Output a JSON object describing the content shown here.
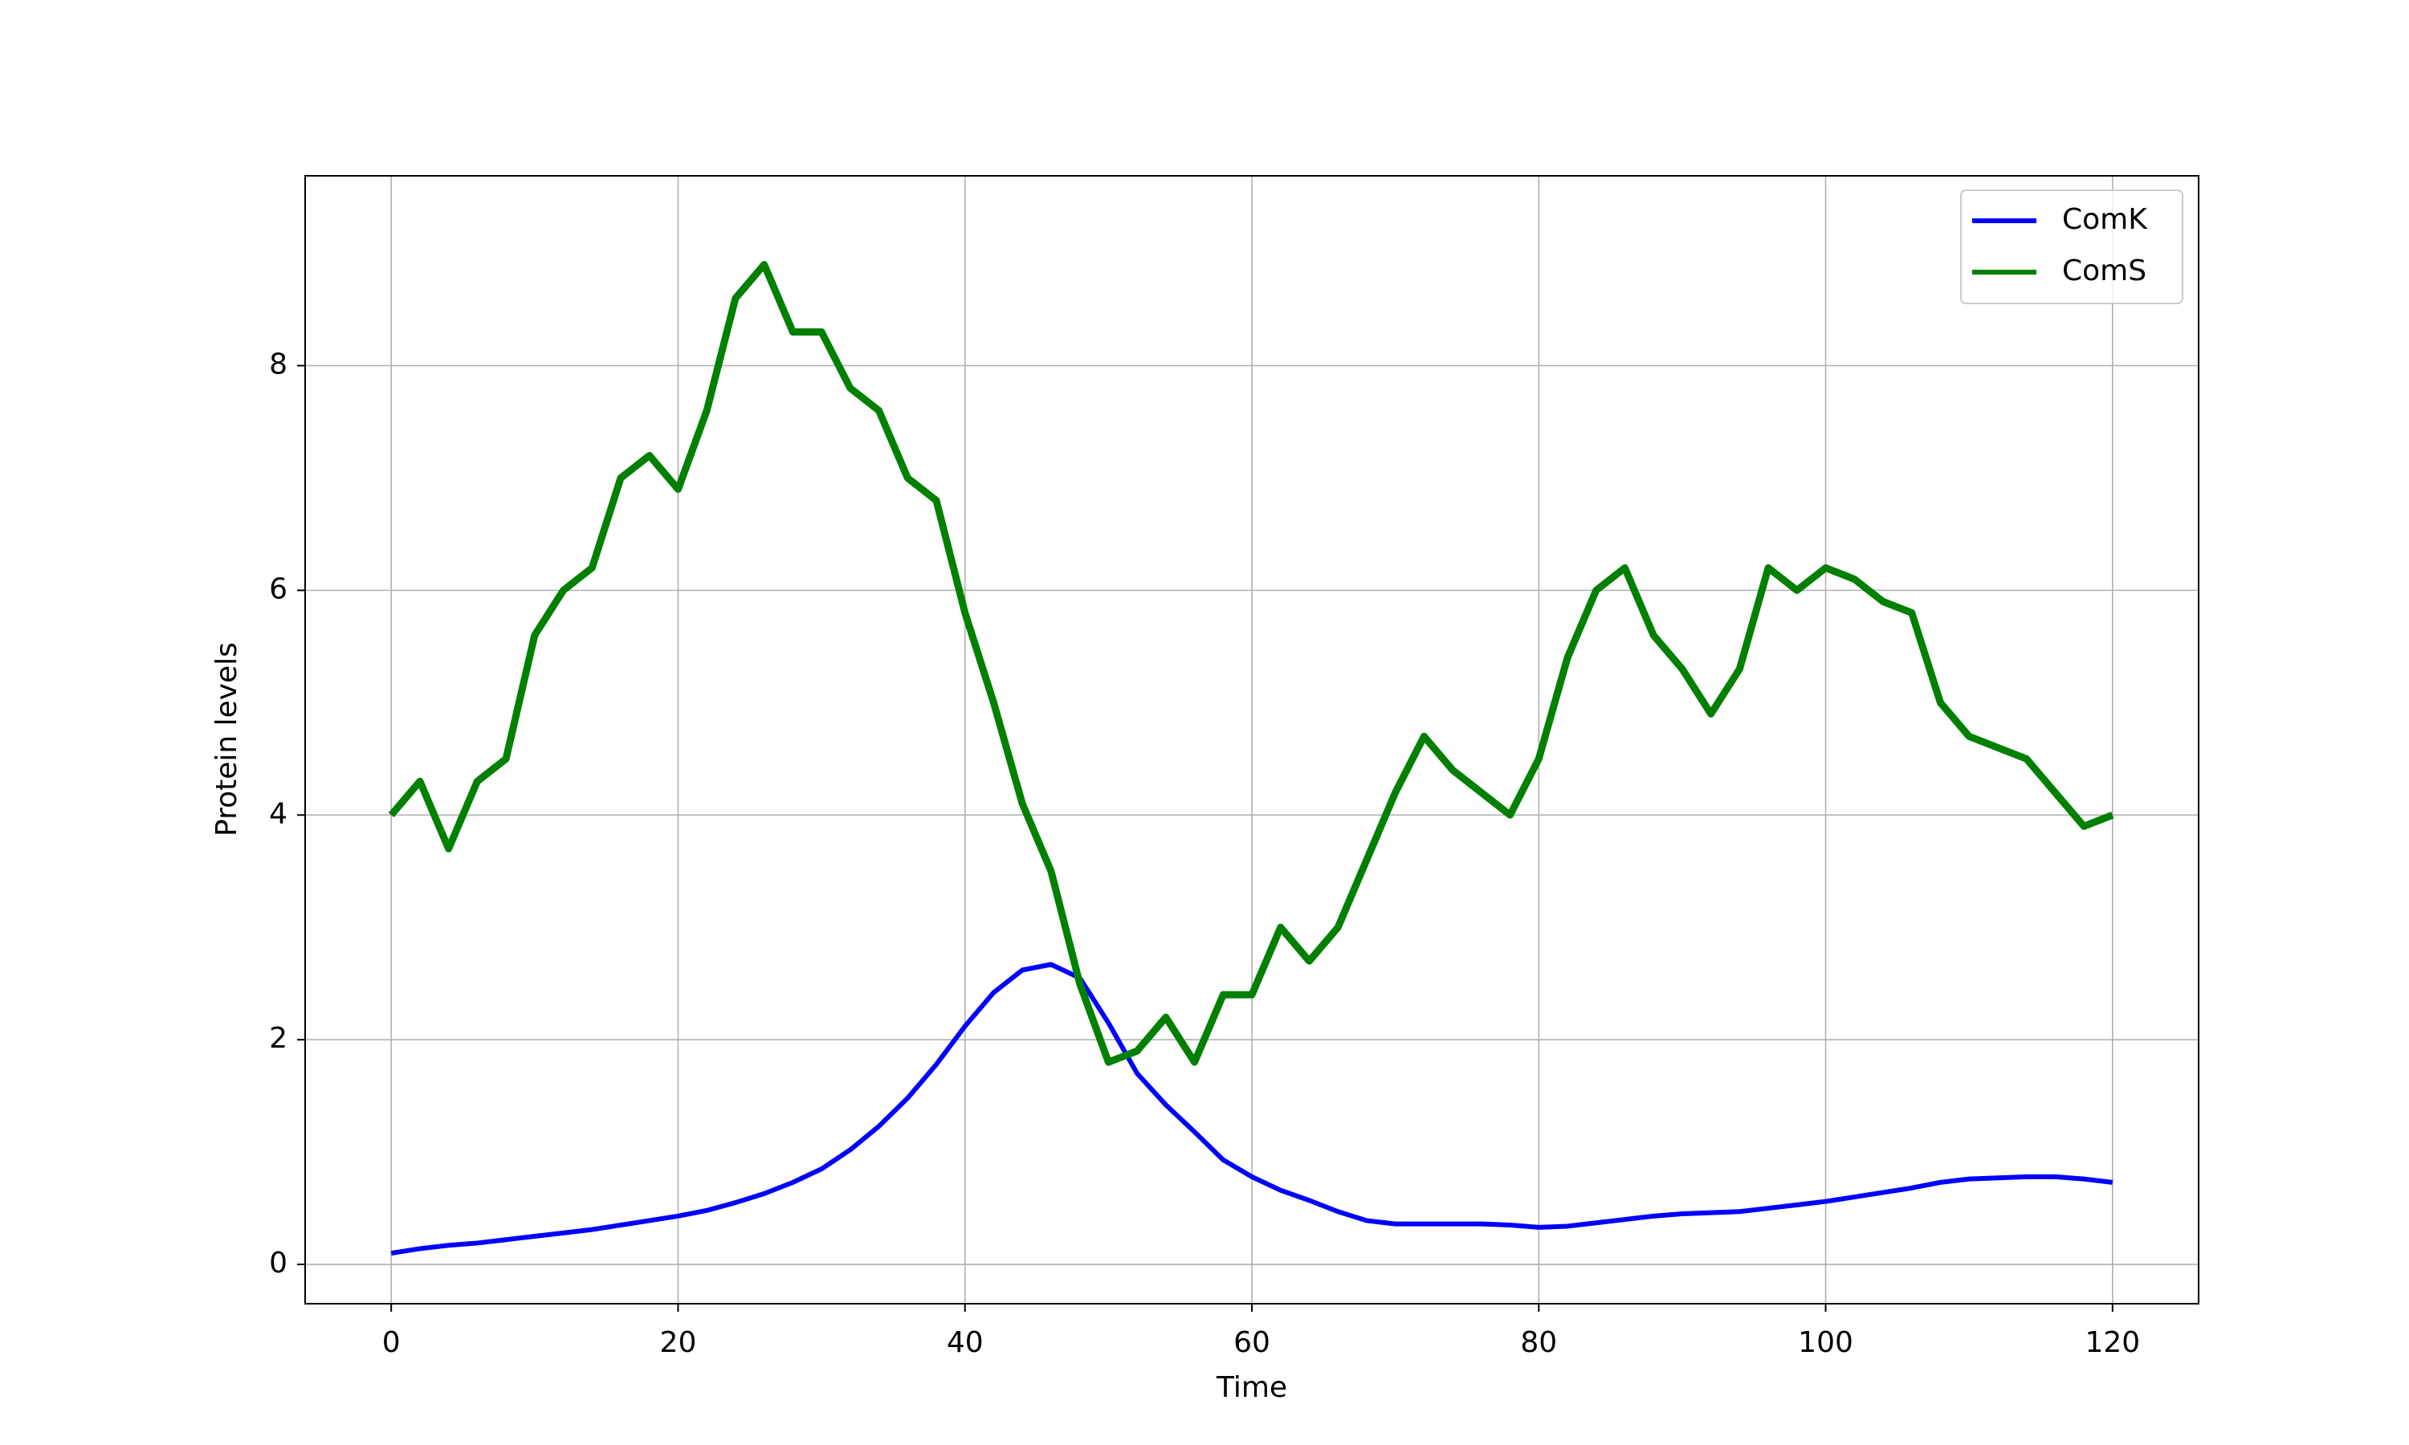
{
  "chart_data": {
    "type": "line",
    "xlabel": "Time",
    "ylabel": "Protein levels",
    "x": [
      0,
      2,
      4,
      6,
      8,
      10,
      12,
      14,
      16,
      18,
      20,
      22,
      24,
      26,
      28,
      30,
      32,
      34,
      36,
      38,
      40,
      42,
      44,
      46,
      48,
      50,
      52,
      54,
      56,
      58,
      60,
      62,
      64,
      66,
      68,
      70,
      72,
      74,
      76,
      78,
      80,
      82,
      84,
      86,
      88,
      90,
      92,
      94,
      96,
      98,
      100,
      102,
      104,
      106,
      108,
      110,
      112,
      114,
      116,
      118,
      120
    ],
    "series": [
      {
        "name": "ComK",
        "color": "#0000ff",
        "values": [
          0.1,
          0.14,
          0.17,
          0.19,
          0.22,
          0.25,
          0.28,
          0.31,
          0.35,
          0.39,
          0.43,
          0.48,
          0.55,
          0.63,
          0.73,
          0.85,
          1.02,
          1.23,
          1.48,
          1.78,
          2.12,
          2.42,
          2.62,
          2.67,
          2.55,
          2.15,
          1.7,
          1.42,
          1.18,
          0.93,
          0.78,
          0.66,
          0.57,
          0.47,
          0.39,
          0.36,
          0.36,
          0.36,
          0.36,
          0.35,
          0.33,
          0.34,
          0.37,
          0.4,
          0.43,
          0.45,
          0.46,
          0.47,
          0.5,
          0.53,
          0.56,
          0.6,
          0.64,
          0.68,
          0.73,
          0.76,
          0.77,
          0.78,
          0.78,
          0.76,
          0.73
        ]
      },
      {
        "name": "ComS",
        "color": "#008000",
        "values": [
          4.0,
          4.3,
          3.7,
          4.3,
          4.5,
          5.6,
          6.0,
          6.2,
          7.0,
          7.2,
          6.9,
          7.6,
          8.6,
          8.9,
          8.3,
          8.3,
          7.8,
          7.6,
          7.0,
          6.8,
          5.8,
          5.0,
          4.1,
          3.5,
          2.5,
          1.8,
          1.9,
          2.2,
          1.8,
          2.4,
          2.4,
          3.0,
          2.7,
          3.0,
          3.6,
          4.2,
          4.7,
          4.4,
          4.2,
          4.0,
          4.5,
          5.4,
          6.0,
          6.2,
          5.6,
          5.3,
          4.9,
          5.3,
          6.2,
          6.0,
          6.2,
          6.1,
          5.9,
          5.8,
          5.0,
          4.7,
          4.6,
          4.5,
          4.2,
          3.9,
          4.0
        ]
      }
    ],
    "xlim": [
      -6,
      126
    ],
    "ylim": [
      -0.35,
      9.69
    ],
    "xticks": [
      0,
      20,
      40,
      60,
      80,
      100,
      120
    ],
    "yticks": [
      0,
      2,
      4,
      6,
      8
    ],
    "grid": true,
    "legend": "upper right"
  }
}
